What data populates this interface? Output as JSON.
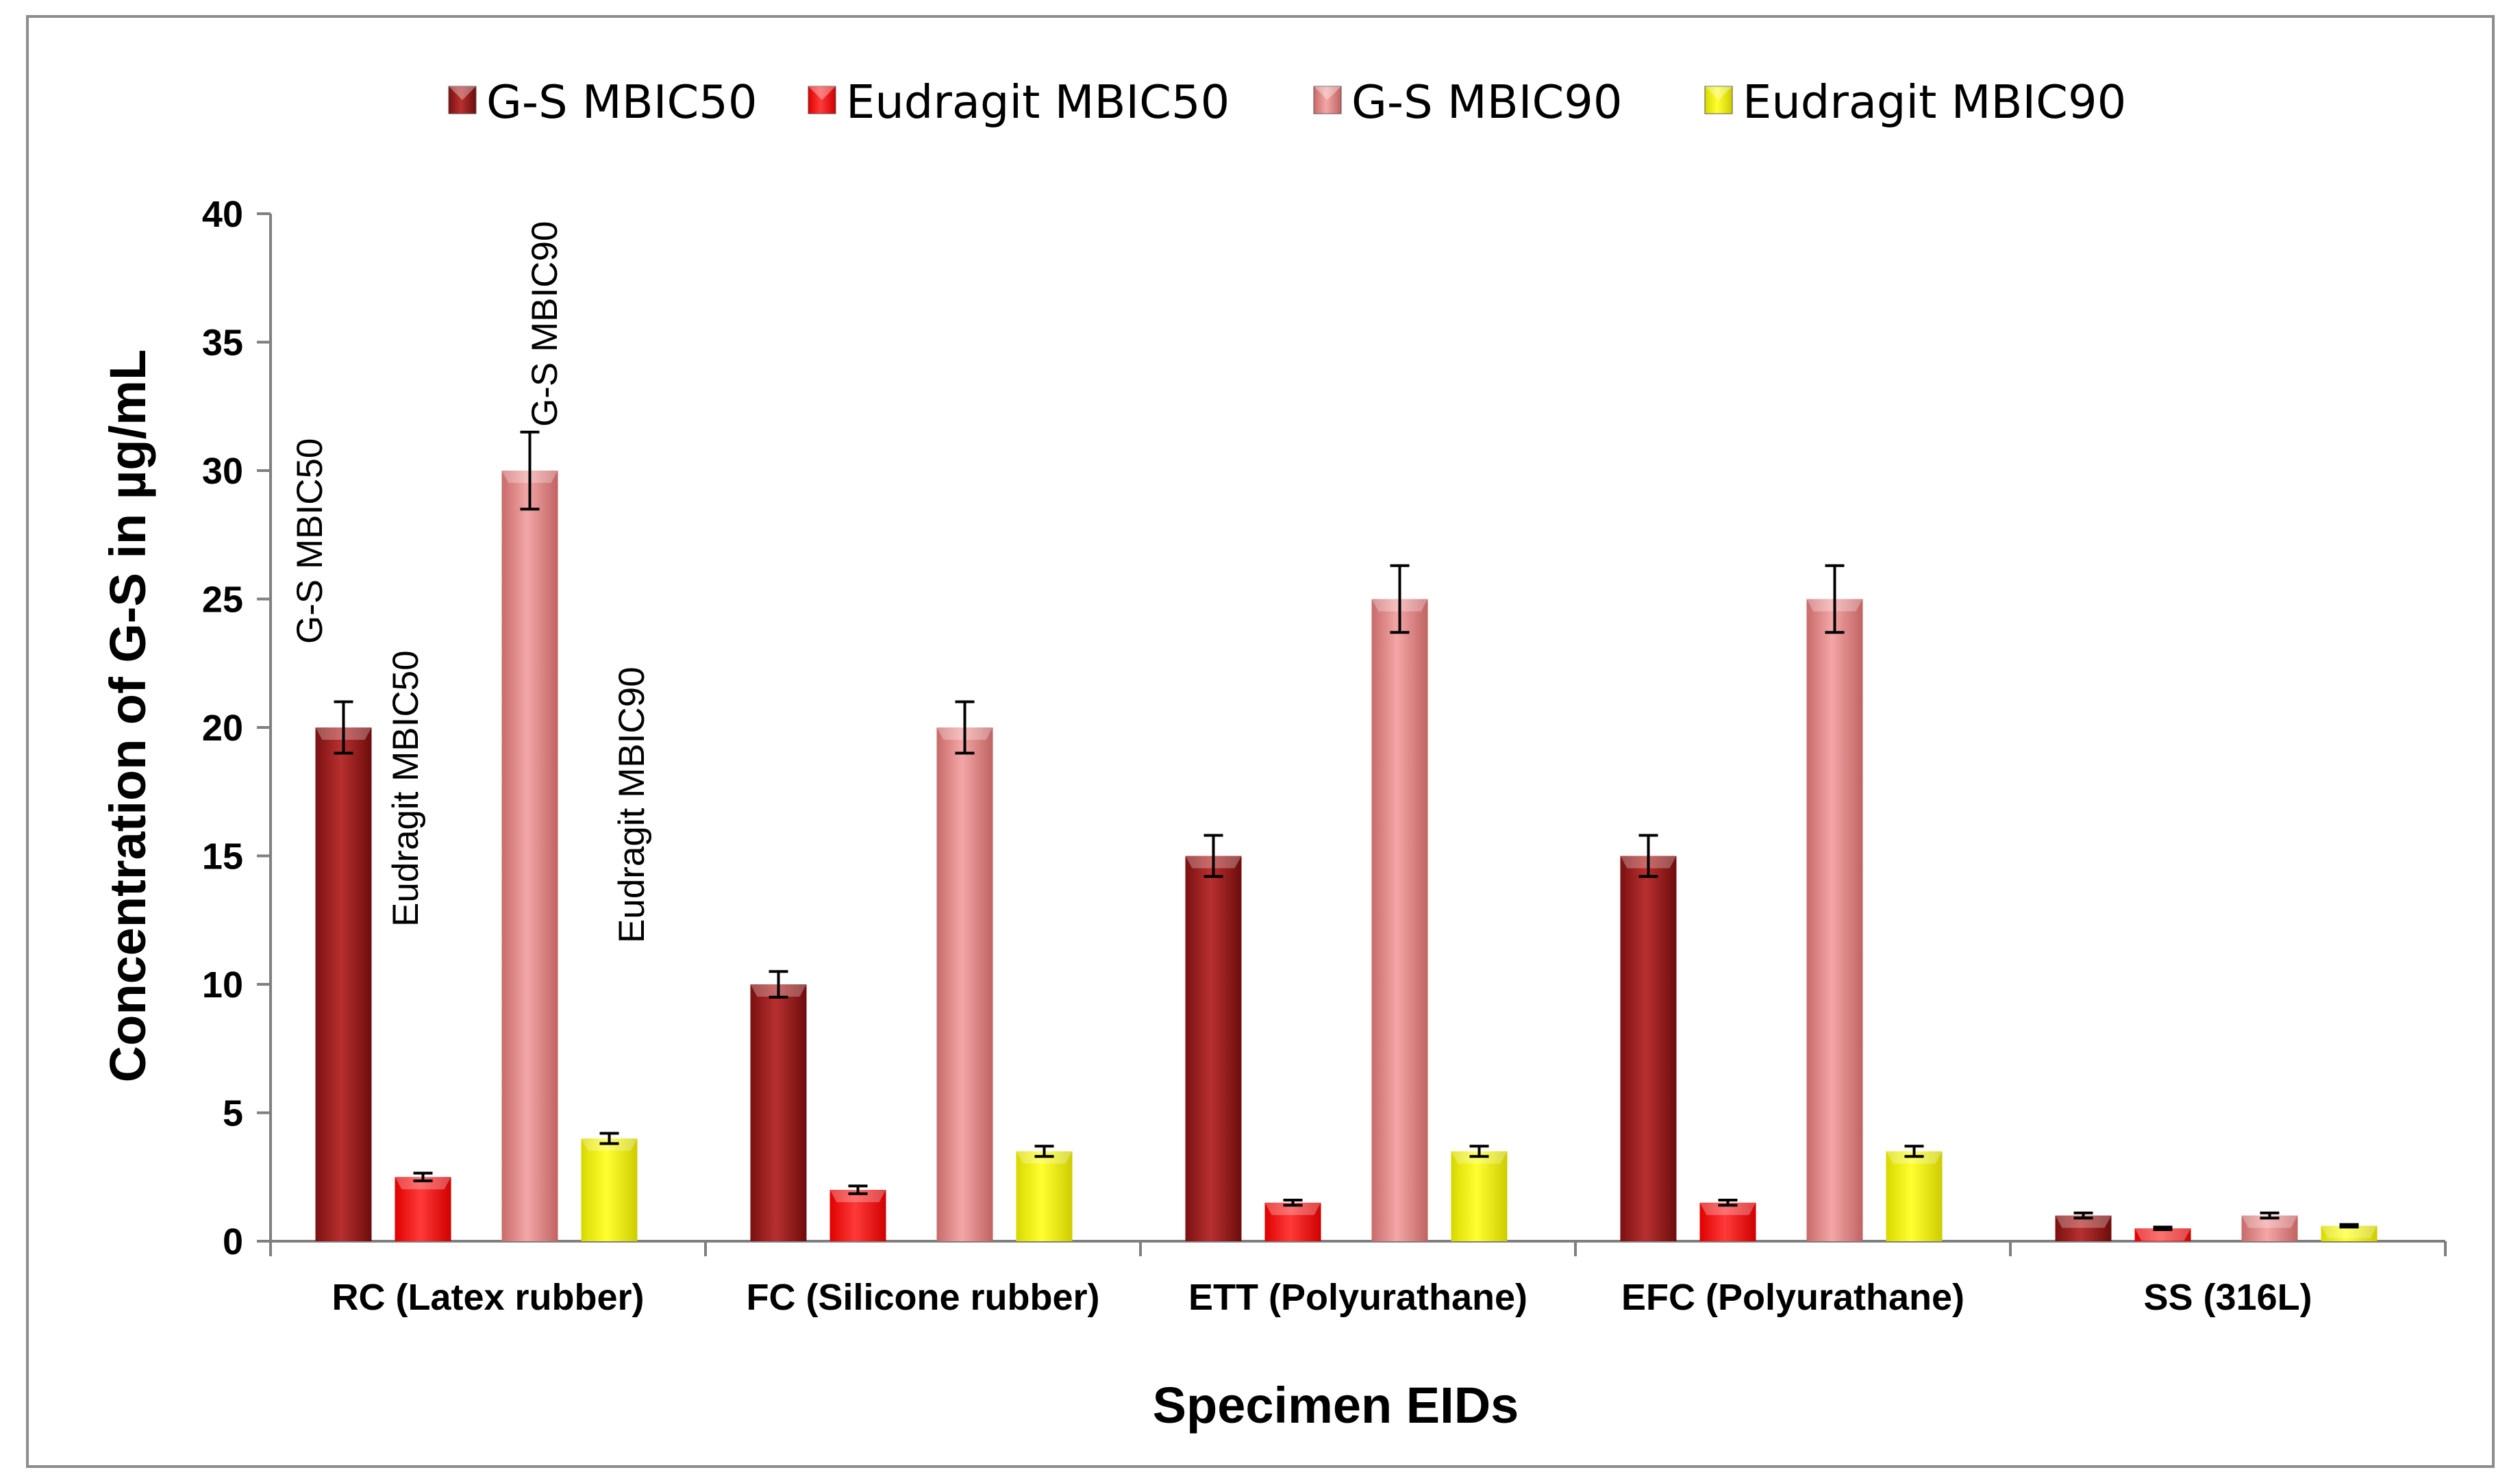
{
  "chart_data": {
    "type": "bar",
    "title": "",
    "xlabel": "Specimen EIDs",
    "ylabel": "Concentration of G-S in µg/mL",
    "ylim": [
      0,
      40
    ],
    "yticks": [
      "0",
      "5",
      "10",
      "15",
      "20",
      "25",
      "30",
      "35",
      "40"
    ],
    "categories": [
      "RC (Latex rubber)",
      "FC (Silicone rubber)",
      "ETT (Polyurathane)",
      "EFC (Polyurathane)",
      "SS (316L)"
    ],
    "series": [
      {
        "name": "G-S MBIC50",
        "color": "#a52a2a",
        "values": [
          20,
          10,
          15,
          15,
          1
        ],
        "errors": [
          1.0,
          0.5,
          0.8,
          0.8,
          0.1
        ]
      },
      {
        "name": "Eudragit MBIC50",
        "color": "#ff1a1a",
        "values": [
          2.5,
          2,
          1.5,
          1.5,
          0.5
        ],
        "errors": [
          0.15,
          0.15,
          0.1,
          0.1,
          0.05
        ]
      },
      {
        "name": "G-S MBIC90",
        "color": "#e88a8a",
        "values": [
          30,
          20,
          25,
          25,
          1
        ],
        "errors": [
          1.5,
          1.0,
          1.3,
          1.3,
          0.1
        ]
      },
      {
        "name": "Eudragit MBIC90",
        "color": "#f5f500",
        "values": [
          4,
          3.5,
          3.5,
          3.5,
          0.6
        ],
        "errors": [
          0.2,
          0.2,
          0.2,
          0.2,
          0.05
        ]
      }
    ],
    "legend": {
      "position": "top"
    },
    "annotations": [
      "G-S MBIC50",
      "Eudragit MBIC50",
      "G-S MBIC90",
      "Eudragit MBIC90"
    ],
    "grid": false
  }
}
